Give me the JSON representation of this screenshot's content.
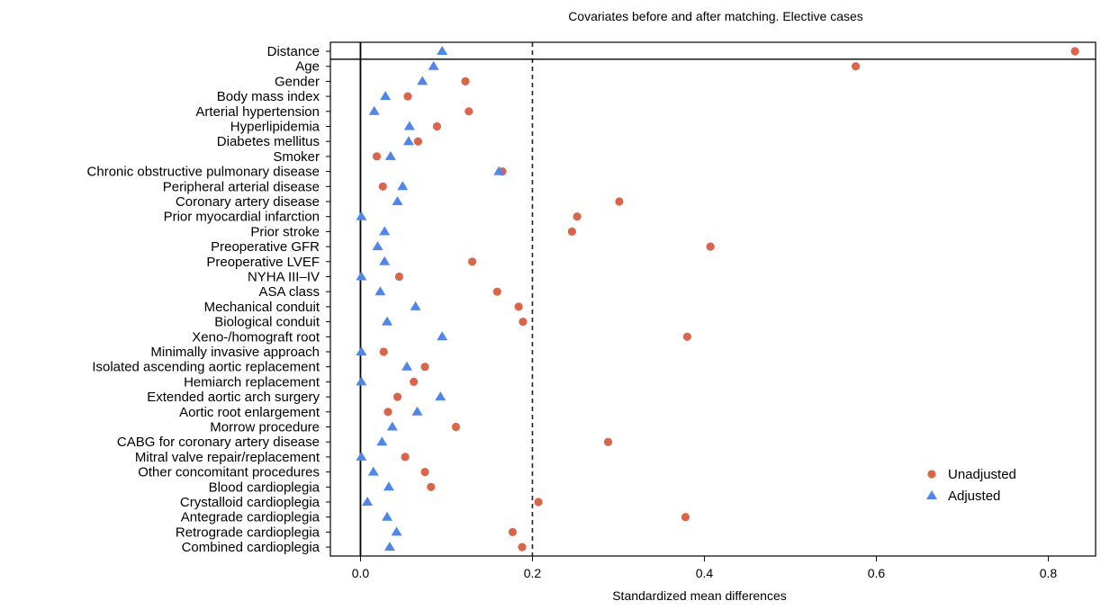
{
  "chart_data": {
    "type": "scatter",
    "title": "Covariates before and after matching. Elective cases",
    "xlabel": "Standardized mean differences",
    "ylabel": "",
    "xlim": [
      -0.035,
      0.855
    ],
    "xticks": [
      "0.0",
      "0.2",
      "0.4",
      "0.6",
      "0.8"
    ],
    "xtick_values": [
      0.0,
      0.2,
      0.4,
      0.6,
      0.8
    ],
    "reference_line": 0.2,
    "legend_position": "bottom-right",
    "colors": {
      "unadjusted": "#d9654a",
      "adjusted": "#4f86e8"
    },
    "categories": [
      "Distance",
      "Age",
      "Gender",
      "Body mass index",
      "Arterial hypertension",
      "Hyperlipidemia",
      "Diabetes mellitus",
      "Smoker",
      "Chronic obstructive pulmonary disease",
      "Peripheral arterial disease",
      "Coronary artery disease",
      "Prior myocardial infarction",
      "Prior stroke",
      "Preoperative GFR",
      "Preoperative LVEF",
      "NYHA III–IV",
      "ASA class",
      "Mechanical conduit",
      "Biological conduit",
      "Xeno-/homograft root",
      "Minimally invasive approach",
      "Isolated ascending aortic replacement",
      "Hemiarch replacement",
      "Extended aortic arch surgery",
      "Aortic root enlargement",
      "Morrow procedure",
      "CABG for coronary artery disease",
      "Mitral valve repair/replacement",
      "Other concomitant procedures",
      "Blood cardioplegia",
      "Crystalloid cardioplegia",
      "Antegrade cardioplegia",
      "Retrograde cardioplegia",
      "Combined cardioplegia"
    ],
    "series": [
      {
        "name": "Unadjusted",
        "values": [
          0.831,
          0.576,
          0.122,
          0.055,
          0.126,
          0.089,
          0.067,
          0.019,
          0.165,
          0.026,
          0.301,
          0.252,
          0.246,
          0.407,
          0.13,
          0.045,
          0.159,
          0.184,
          0.189,
          0.38,
          0.027,
          0.075,
          0.062,
          0.043,
          0.032,
          0.111,
          0.288,
          0.052,
          0.075,
          0.082,
          0.207,
          0.378,
          0.177,
          0.188
        ]
      },
      {
        "name": "Adjusted",
        "values": [
          0.095,
          0.085,
          0.072,
          0.029,
          0.016,
          0.057,
          0.056,
          0.035,
          0.161,
          0.049,
          0.043,
          0.001,
          0.028,
          0.02,
          0.028,
          0.001,
          0.023,
          0.064,
          0.031,
          0.095,
          0.001,
          0.054,
          0.001,
          0.093,
          0.066,
          0.037,
          0.025,
          0.001,
          0.015,
          0.033,
          0.008,
          0.031,
          0.042,
          0.034
        ]
      }
    ]
  }
}
